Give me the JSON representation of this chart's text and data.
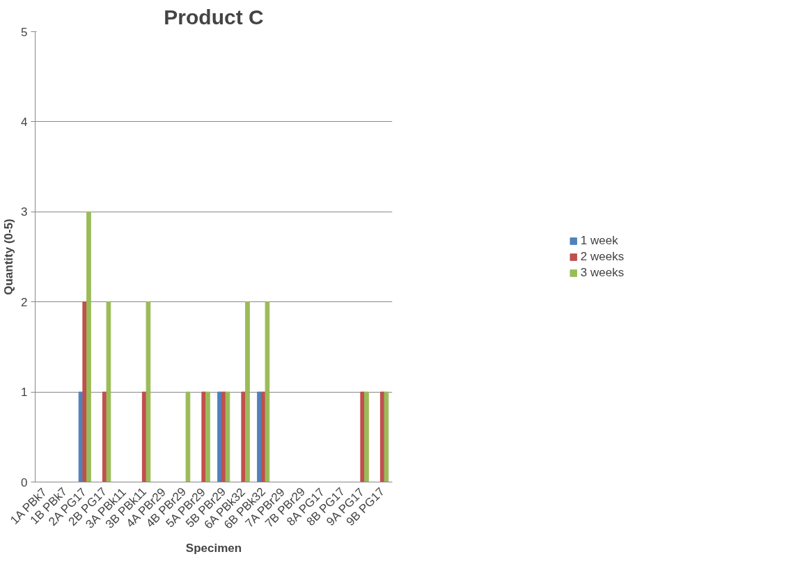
{
  "chart_data": {
    "type": "bar",
    "title": "Product C",
    "xlabel": "Specimen",
    "ylabel": "Quantity (0-5)",
    "categories": [
      "1A PBk7",
      "1B PBk7",
      "2A PG17",
      "2B PG17",
      "3A PBk11",
      "3B PBk11",
      "4A PBr29",
      "4B PBr29",
      "5A PBr29",
      "5B PBr29",
      "6A PBk32",
      "6B PBk32",
      "7A PBr29",
      "7B PBr29",
      "8A PG17",
      "8B PG17",
      "9A PG17",
      "9B PG17"
    ],
    "series": [
      {
        "name": "1 week",
        "color": "#4f81bd",
        "values": [
          0,
          0,
          1,
          0,
          0,
          0,
          0,
          0,
          0,
          1,
          0,
          1,
          0,
          0,
          0,
          0,
          0,
          0
        ]
      },
      {
        "name": "2 weeks",
        "color": "#c0504d",
        "values": [
          0,
          0,
          2,
          1,
          0,
          1,
          0,
          0,
          1,
          1,
          1,
          1,
          0,
          0,
          0,
          0,
          1,
          1
        ]
      },
      {
        "name": "3 weeks",
        "color": "#9bbb59",
        "values": [
          0,
          0,
          3,
          2,
          0,
          2,
          0,
          1,
          1,
          1,
          2,
          2,
          0,
          0,
          0,
          0,
          1,
          1
        ]
      }
    ],
    "ylim": [
      0,
      5
    ],
    "yticks": [
      0,
      1,
      2,
      3,
      4,
      5
    ],
    "grid": "y",
    "legend": "right"
  }
}
